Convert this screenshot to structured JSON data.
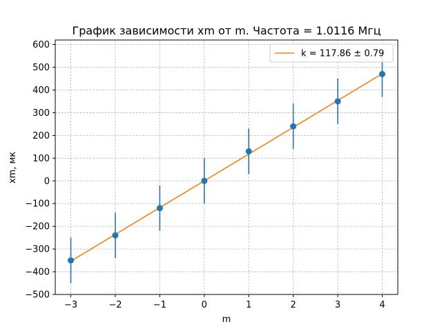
{
  "chart_data": {
    "type": "scatter",
    "title": "График зависимости xm от m. Частота = 1.0116 Мгц",
    "xlabel": "m",
    "ylabel": "xm, мк",
    "xlim": [
      -3.35,
      4.35
    ],
    "ylim": [
      -500,
      620
    ],
    "x_ticks": [
      -3,
      -2,
      -1,
      0,
      1,
      2,
      3,
      4
    ],
    "x_tick_labels": [
      "−3",
      "−2",
      "−1",
      "0",
      "1",
      "2",
      "3",
      "4"
    ],
    "y_ticks": [
      -500,
      -400,
      -300,
      -200,
      -100,
      0,
      100,
      200,
      300,
      400,
      500,
      600
    ],
    "y_tick_labels": [
      "−500",
      "−400",
      "−300",
      "−200",
      "−100",
      "0",
      "100",
      "200",
      "300",
      "400",
      "500",
      "600"
    ],
    "grid": true,
    "legend_position": "top-right",
    "series": [
      {
        "type": "errorbar",
        "color": "#1f77b4",
        "x": [
          -3,
          -2,
          -1,
          0,
          1,
          2,
          3,
          4
        ],
        "y": [
          -350,
          -240,
          -120,
          0,
          130,
          240,
          350,
          470
        ],
        "yerr": [
          100,
          100,
          100,
          100,
          100,
          100,
          100,
          100
        ]
      },
      {
        "type": "line",
        "name": "k = 117.86 ± 0.79",
        "color": "#ff7f0e",
        "slope": 117.86,
        "x": [
          -3,
          4
        ]
      }
    ]
  }
}
